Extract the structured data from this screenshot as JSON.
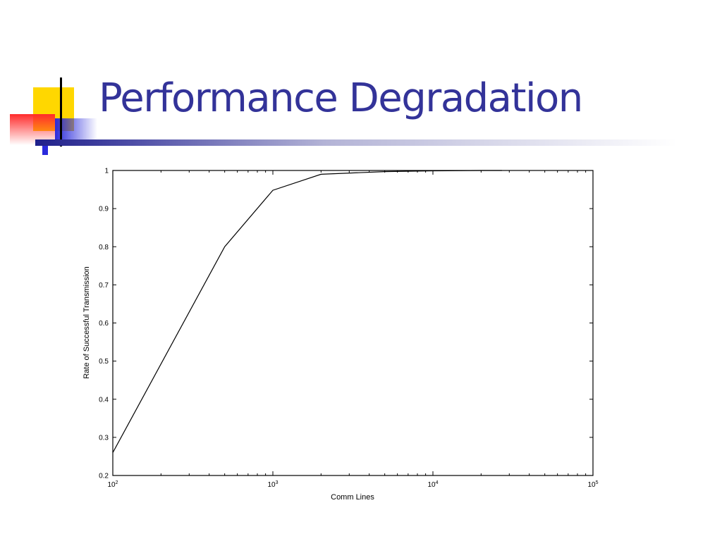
{
  "slide": {
    "title": "Performance Degradation",
    "title_color": "#333399"
  },
  "decoration": {
    "square_yellow": "#ffd700",
    "square_red": "#ff2b2b",
    "square_blue": "#2a2adc",
    "line_color": "#000000"
  },
  "chart_data": {
    "type": "line",
    "xscale": "log",
    "xlim": [
      100,
      100000
    ],
    "ylim": [
      0.2,
      1
    ],
    "xlabel": "Comm Lines",
    "ylabel": "Rate of Successful Transmission",
    "y_ticks": [
      "0.2",
      "0.3",
      "0.4",
      "0.5",
      "0.6",
      "0.7",
      "0.8",
      "0.9",
      "1"
    ],
    "x_ticks": [
      {
        "value": 100,
        "base": "10",
        "exp": "2"
      },
      {
        "value": 1000,
        "base": "10",
        "exp": "3"
      },
      {
        "value": 10000,
        "base": "10",
        "exp": "4"
      },
      {
        "value": 100000,
        "base": "10",
        "exp": "5"
      }
    ],
    "grid": false,
    "series": [
      {
        "x": [
          100,
          500,
          1000,
          2000,
          5000,
          10000,
          20000,
          27000
        ],
        "y": [
          0.26,
          0.8,
          0.948,
          0.99,
          0.997,
          0.999,
          1.0,
          1.0
        ]
      }
    ]
  }
}
